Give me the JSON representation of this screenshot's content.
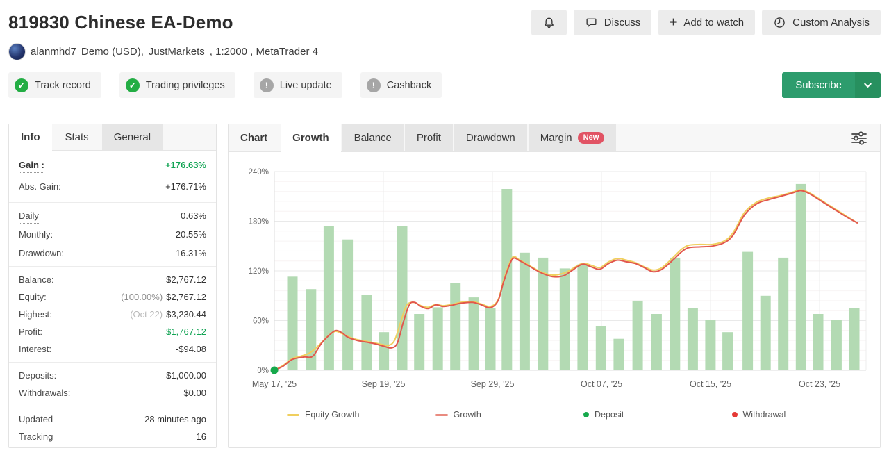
{
  "header": {
    "title": "819830 Chinese EA-Demo",
    "buttons": [
      {
        "icon": "bell",
        "label": ""
      },
      {
        "icon": "chat",
        "label": "Discuss"
      },
      {
        "icon": "plus",
        "label": "Add to watch"
      },
      {
        "icon": "clock",
        "label": "Custom Analysis"
      }
    ],
    "account": {
      "user": "alanmhd7",
      "details": "Demo (USD),",
      "broker": "JustMarkets",
      "details2": ", 1:2000 , MetaTrader 4"
    },
    "badges": [
      {
        "label": "Track record",
        "status": "ok"
      },
      {
        "label": "Trading privileges",
        "status": "ok"
      },
      {
        "label": "Live update",
        "status": "warn"
      },
      {
        "label": "Cashback",
        "status": "warn"
      }
    ],
    "subscribe": {
      "label": "Subscribe"
    }
  },
  "icons": {
    "plus": "+",
    "check": "✓",
    "exclamation": "!"
  },
  "colors": {
    "accent_green": "#2d9c6d",
    "positive": "#12a454",
    "check_badge": "#23ad44",
    "muted_badge": "#a6a6a6",
    "new_badge": "#e15364"
  },
  "left_panel": {
    "tabs": [
      {
        "label": "Info",
        "variant": "active"
      },
      {
        "label": "Stats",
        "variant": ""
      },
      {
        "label": "General",
        "variant": "shaded"
      }
    ],
    "groups": [
      {
        "rows": [
          {
            "label": "Gain :",
            "value": "+176.63%",
            "dotted": true,
            "bold": true,
            "value_color": "green",
            "value_bold": true,
            "tall": true
          },
          {
            "label": "Abs. Gain:",
            "value": "+176.71%",
            "dotted": true,
            "tall": true
          }
        ]
      },
      {
        "rows": [
          {
            "label": "Daily",
            "value": "0.63%",
            "dotted": true
          },
          {
            "label": "Monthly:",
            "value": "20.55%",
            "dotted": true
          },
          {
            "label": "Drawdown:",
            "value": "16.31%"
          }
        ]
      },
      {
        "rows": [
          {
            "label": "Balance:",
            "value": "$2,767.12"
          },
          {
            "label": "Equity:",
            "prefix": "(100.00%)",
            "value": "$2,767.12"
          },
          {
            "label": "Highest:",
            "prefix": "(Oct 22)",
            "prefix_light": true,
            "value": "$3,230.44"
          },
          {
            "label": "Profit:",
            "value": "$1,767.12",
            "value_color": "green"
          },
          {
            "label": "Interest:",
            "value": "-$94.08"
          }
        ]
      },
      {
        "rows": [
          {
            "label": "Deposits:",
            "value": "$1,000.00"
          },
          {
            "label": "Withdrawals:",
            "value": "$0.00"
          }
        ]
      },
      {
        "rows": [
          {
            "label": "Updated",
            "value": "28 minutes ago"
          },
          {
            "label": "Tracking",
            "value": "16"
          }
        ]
      }
    ]
  },
  "chart_panel": {
    "tabs": [
      {
        "label": "Chart",
        "variant": "label"
      },
      {
        "label": "Growth",
        "variant": "active"
      },
      {
        "label": "Balance",
        "variant": "shaded"
      },
      {
        "label": "Profit",
        "variant": "shaded"
      },
      {
        "label": "Drawdown",
        "variant": "shaded"
      },
      {
        "label": "Margin",
        "variant": "shaded",
        "badge": "New"
      }
    ]
  },
  "chart_data": {
    "type": "bar+line",
    "title": "Growth",
    "xlabel": "",
    "ylabel": "Growth %",
    "ylim": [
      0,
      240
    ],
    "grid": true,
    "legend_position": "bottom",
    "yticks": [
      {
        "value": 0,
        "label": "0%"
      },
      {
        "value": 60,
        "label": "60%"
      },
      {
        "value": 120,
        "label": "120%"
      },
      {
        "value": 180,
        "label": "180%"
      },
      {
        "value": 240,
        "label": "240%"
      }
    ],
    "minor_grid_step": 12,
    "xticks": [
      {
        "pos": 0,
        "label": "May 17, '25"
      },
      {
        "pos": 18.43,
        "label": "Sep 19, '25"
      },
      {
        "pos": 36.85,
        "label": "Sep 29, '25"
      },
      {
        "pos": 55.28,
        "label": "Oct 07, '25"
      },
      {
        "pos": 73.71,
        "label": "Oct 15, '25"
      },
      {
        "pos": 92.14,
        "label": "Oct 23, '25"
      }
    ],
    "bars": {
      "name": "Period gain",
      "color": "#b3dab3",
      "points": [
        [
          3.05,
          113
        ],
        [
          6.2,
          98
        ],
        [
          9.2,
          174
        ],
        [
          12.4,
          158
        ],
        [
          15.6,
          91
        ],
        [
          18.5,
          46
        ],
        [
          21.6,
          174
        ],
        [
          24.5,
          68
        ],
        [
          27.6,
          76
        ],
        [
          30.6,
          105
        ],
        [
          33.7,
          88
        ],
        [
          36.5,
          75
        ],
        [
          39.3,
          219
        ],
        [
          42.3,
          142
        ],
        [
          45.4,
          136
        ],
        [
          49.1,
          123
        ],
        [
          52.1,
          128
        ],
        [
          55.2,
          53
        ],
        [
          58.2,
          38
        ],
        [
          61.4,
          84
        ],
        [
          64.6,
          68
        ],
        [
          67.7,
          136
        ],
        [
          70.7,
          75
        ],
        [
          73.7,
          61
        ],
        [
          76.6,
          46
        ],
        [
          80.0,
          143
        ],
        [
          83.0,
          90
        ],
        [
          86.0,
          136
        ],
        [
          89.0,
          225
        ],
        [
          91.9,
          68
        ],
        [
          95.0,
          61
        ],
        [
          98.0,
          75
        ]
      ]
    },
    "series": [
      {
        "name": "Equity Growth",
        "color": "#f0cf5e",
        "points": [
          [
            0,
            0
          ],
          [
            1.5,
            6
          ],
          [
            3,
            14
          ],
          [
            4.5,
            17
          ],
          [
            6,
            21
          ],
          [
            7.5,
            30
          ],
          [
            9,
            41
          ],
          [
            10.3,
            47
          ],
          [
            11.5,
            44
          ],
          [
            12.4,
            41
          ],
          [
            14,
            37
          ],
          [
            15.6,
            35
          ],
          [
            17,
            33
          ],
          [
            18.3,
            31
          ],
          [
            19.3,
            30
          ],
          [
            20.3,
            36
          ],
          [
            21.3,
            57
          ],
          [
            22.3,
            78
          ],
          [
            23.5,
            82
          ],
          [
            24.8,
            78
          ],
          [
            26,
            76
          ],
          [
            27.3,
            79.5
          ],
          [
            28.5,
            78
          ],
          [
            30,
            79.5
          ],
          [
            31.5,
            82
          ],
          [
            33.5,
            83
          ],
          [
            35,
            80
          ],
          [
            36.5,
            77
          ],
          [
            37.8,
            85
          ],
          [
            38.8,
            110
          ],
          [
            40.2,
            136
          ],
          [
            41.5,
            133
          ],
          [
            43,
            127
          ],
          [
            45,
            119
          ],
          [
            47,
            115
          ],
          [
            48.8,
            117
          ],
          [
            50,
            121
          ],
          [
            52,
            129
          ],
          [
            53.5,
            127
          ],
          [
            55,
            124
          ],
          [
            56.5,
            131
          ],
          [
            58,
            135
          ],
          [
            59.5,
            133
          ],
          [
            61,
            130
          ],
          [
            62.5,
            125
          ],
          [
            64,
            121
          ],
          [
            65.5,
            124
          ],
          [
            67.5,
            137
          ],
          [
            68.8,
            146
          ],
          [
            70,
            151
          ],
          [
            72,
            152
          ],
          [
            74,
            152
          ],
          [
            76,
            156
          ],
          [
            77.5,
            166
          ],
          [
            79.5,
            191
          ],
          [
            81.5,
            203
          ],
          [
            83.5,
            208
          ],
          [
            85.5,
            211
          ],
          [
            87.5,
            215
          ],
          [
            89,
            218
          ],
          [
            90.5,
            214
          ],
          [
            92.5,
            205
          ],
          [
            94.5,
            196
          ],
          [
            96.5,
            187
          ],
          [
            98.5,
            178
          ]
        ]
      },
      {
        "name": "Growth",
        "color": "#e2574c",
        "points": [
          [
            0,
            0
          ],
          [
            1.5,
            5
          ],
          [
            3,
            13
          ],
          [
            5,
            16
          ],
          [
            6.5,
            17
          ],
          [
            8,
            33
          ],
          [
            9.7,
            45
          ],
          [
            10.5,
            48
          ],
          [
            11.5,
            45
          ],
          [
            12.4,
            40
          ],
          [
            14,
            36
          ],
          [
            15.6,
            34
          ],
          [
            17,
            32
          ],
          [
            18.5,
            29
          ],
          [
            19.8,
            27
          ],
          [
            20.8,
            33
          ],
          [
            21.8,
            58
          ],
          [
            22.8,
            79
          ],
          [
            23.7,
            82
          ],
          [
            24.8,
            77
          ],
          [
            26,
            74.5
          ],
          [
            27.3,
            79
          ],
          [
            28.5,
            77
          ],
          [
            30,
            78.5
          ],
          [
            31.5,
            81
          ],
          [
            33.5,
            82
          ],
          [
            35,
            79
          ],
          [
            36.5,
            75.5
          ],
          [
            37.8,
            84
          ],
          [
            38.8,
            108
          ],
          [
            40.2,
            134
          ],
          [
            41.5,
            132
          ],
          [
            43,
            126
          ],
          [
            45,
            118
          ],
          [
            47,
            113
          ],
          [
            48.8,
            114
          ],
          [
            50,
            119
          ],
          [
            52,
            128
          ],
          [
            53.5,
            125
          ],
          [
            55,
            122
          ],
          [
            56.5,
            129
          ],
          [
            58,
            133
          ],
          [
            59.5,
            131
          ],
          [
            61,
            129
          ],
          [
            62.5,
            124
          ],
          [
            64,
            119
          ],
          [
            65.5,
            122
          ],
          [
            67.5,
            134
          ],
          [
            68.8,
            143
          ],
          [
            70,
            148
          ],
          [
            72,
            149
          ],
          [
            74,
            150
          ],
          [
            76,
            154
          ],
          [
            77.5,
            163
          ],
          [
            79.5,
            188
          ],
          [
            81.5,
            201
          ],
          [
            83.5,
            206
          ],
          [
            85.5,
            210
          ],
          [
            87.5,
            214
          ],
          [
            89,
            217
          ],
          [
            90.5,
            213
          ],
          [
            92.5,
            204
          ],
          [
            94.5,
            195
          ],
          [
            96.5,
            186
          ],
          [
            98.5,
            178
          ]
        ]
      }
    ],
    "markers": [
      {
        "name": "Deposit",
        "color": "#16a94c",
        "pos": 0,
        "value": 0
      }
    ],
    "legend": [
      {
        "label": "Equity Growth",
        "swatch": "line",
        "color": "#f0cf5e"
      },
      {
        "label": "Growth",
        "swatch": "line",
        "color": "#e98b80"
      },
      {
        "label": "Deposit",
        "swatch": "dot",
        "color": "#16a94c"
      },
      {
        "label": "Withdrawal",
        "swatch": "dot",
        "color": "#e53935"
      }
    ]
  }
}
